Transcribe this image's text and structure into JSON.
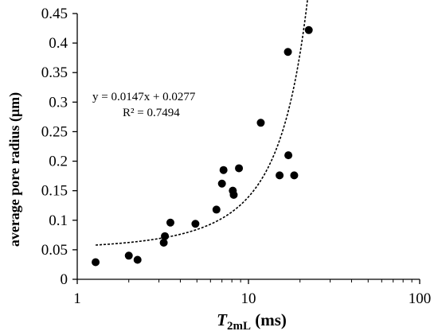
{
  "chart_data": {
    "type": "scatter",
    "xscale": "log",
    "xlim": [
      1,
      100
    ],
    "ylim": [
      0,
      0.45
    ],
    "xticks": [
      {
        "value": 1,
        "label": "1"
      },
      {
        "value": 10,
        "label": "10"
      },
      {
        "value": 100,
        "label": "100"
      }
    ],
    "yticks": [
      {
        "value": 0,
        "label": "0"
      },
      {
        "value": 0.05,
        "label": "0.05"
      },
      {
        "value": 0.1,
        "label": "0.1"
      },
      {
        "value": 0.15,
        "label": "0.15"
      },
      {
        "value": 0.2,
        "label": "0.2"
      },
      {
        "value": 0.25,
        "label": "0.25"
      },
      {
        "value": 0.3,
        "label": "0.3"
      },
      {
        "value": 0.35,
        "label": "0.35"
      },
      {
        "value": 0.4,
        "label": "0.4"
      },
      {
        "value": 0.45,
        "label": "0.45"
      }
    ],
    "ylabel": "average pore radius  (μm)",
    "xlabel_main": "T",
    "xlabel_sub": "2mL",
    "xlabel_unit": " (ms)",
    "grid": false,
    "points": [
      {
        "x": 1.28,
        "y": 0.029
      },
      {
        "x": 2.0,
        "y": 0.04
      },
      {
        "x": 2.25,
        "y": 0.033
      },
      {
        "x": 3.2,
        "y": 0.062
      },
      {
        "x": 3.25,
        "y": 0.073
      },
      {
        "x": 3.5,
        "y": 0.096
      },
      {
        "x": 4.9,
        "y": 0.094
      },
      {
        "x": 6.5,
        "y": 0.118
      },
      {
        "x": 7.0,
        "y": 0.162
      },
      {
        "x": 7.15,
        "y": 0.185
      },
      {
        "x": 8.1,
        "y": 0.15
      },
      {
        "x": 8.2,
        "y": 0.143
      },
      {
        "x": 8.8,
        "y": 0.188
      },
      {
        "x": 11.8,
        "y": 0.265
      },
      {
        "x": 15.2,
        "y": 0.176
      },
      {
        "x": 17.0,
        "y": 0.385
      },
      {
        "x": 17.1,
        "y": 0.21
      },
      {
        "x": 18.5,
        "y": 0.176
      },
      {
        "x": 22.5,
        "y": 0.422
      }
    ],
    "trendline": {
      "type": "exponential",
      "x_range": [
        1.28,
        22.5
      ],
      "equation": "y = 0.0147x  + 0.0277",
      "r2": "R² = 0.7494"
    }
  }
}
